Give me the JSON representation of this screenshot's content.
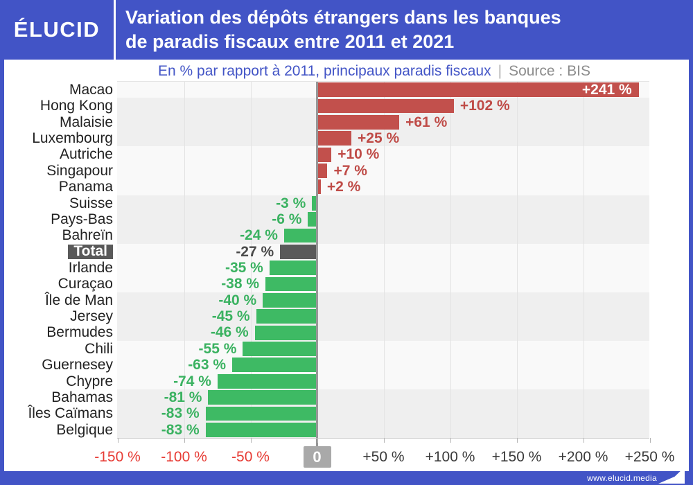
{
  "header": {
    "logo": "ÉLUCID",
    "title_line1": "Variation des dépôts étrangers dans les banques",
    "title_line2": "de paradis fiscaux entre 2011 et 2021"
  },
  "subtitle": {
    "text": "En % par rapport à 2011, principaux paradis fiscaux",
    "separator": "|",
    "source": "Source : BIS"
  },
  "footer": {
    "url": "www.elucid.media"
  },
  "colors": {
    "brand_blue": "#4254c6",
    "bar_positive": "#c2504c",
    "bar_negative": "#3eba64",
    "bar_total": "#595959",
    "value_positive_text": "#bf4b47",
    "value_negative_text": "#3bb261",
    "value_total_text": "#4a4a4a",
    "value_inside_text": "#ffffff",
    "axis_negative_text": "#e73b34",
    "axis_positive_text": "#3a3a3a",
    "zero_box_bg": "#a9a9a9",
    "band_dark": "#efefef",
    "band_light": "#f9f9f9",
    "category_text": "#222222"
  },
  "chart_data": {
    "type": "bar",
    "orientation": "horizontal",
    "title": "Variation des dépôts étrangers dans les banques de paradis fiscaux entre 2011 et 2021",
    "subtitle": "En % par rapport à 2011, principaux paradis fiscaux",
    "source": "Source : BIS",
    "unit": "%",
    "grid": true,
    "xlim": [
      -150,
      250
    ],
    "categories": [
      "Macao",
      "Hong Kong",
      "Malaisie",
      "Luxembourg",
      "Autriche",
      "Singapour",
      "Panama",
      "Suisse",
      "Pays-Bas",
      "Bahreïn",
      "Total",
      "Irlande",
      "Curaçao",
      "Île de Man",
      "Jersey",
      "Bermudes",
      "Chili",
      "Guernesey",
      "Chypre",
      "Bahamas",
      "Îles Caïmans",
      "Belgique"
    ],
    "values": [
      241,
      102,
      61,
      25,
      10,
      7,
      2,
      -3,
      -6,
      -24,
      -27,
      -35,
      -38,
      -40,
      -45,
      -46,
      -55,
      -63,
      -74,
      -81,
      -83,
      -83
    ],
    "value_labels": [
      "+241 %",
      "+102 %",
      "+61 %",
      "+25 %",
      "+10 %",
      "+7 %",
      "+2 %",
      "-3 %",
      "-6 %",
      "-24 %",
      "-27 %",
      "-35 %",
      "-38 %",
      "-40 %",
      "-45 %",
      "-46 %",
      "-55 %",
      "-63 %",
      "-74 %",
      "-81 %",
      "-83 %",
      "-83 %"
    ],
    "highlight_category": "Total",
    "x_ticks": [
      {
        "value": -150,
        "label": "-150 %"
      },
      {
        "value": -100,
        "label": "-100 %"
      },
      {
        "value": -50,
        "label": "-50 %"
      },
      {
        "value": 0,
        "label": "0"
      },
      {
        "value": 50,
        "label": "+50 %"
      },
      {
        "value": 100,
        "label": "+100 %"
      },
      {
        "value": 150,
        "label": "+150 %"
      },
      {
        "value": 200,
        "label": "+200 %"
      },
      {
        "value": 250,
        "label": "+250 %"
      }
    ]
  }
}
